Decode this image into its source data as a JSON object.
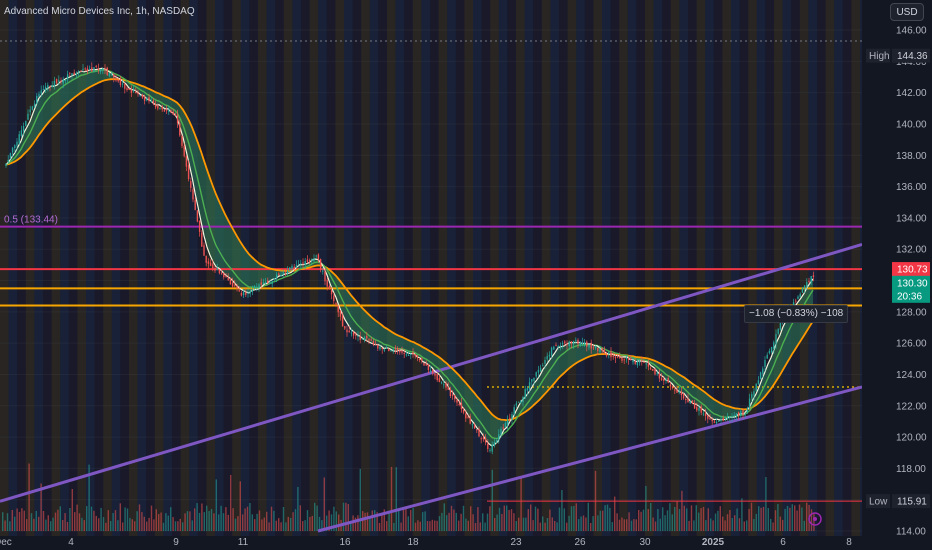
{
  "header": {
    "symbol_title": "Advanced Micro Devices Inc, 1h, NASDAQ",
    "currency": "USD"
  },
  "measure_label": "−1.08 (−0.83%) −108",
  "chart_data": {
    "type": "candlestick",
    "ylim": [
      113.3,
      147.0
    ],
    "x_ticks": [
      "Dec",
      "4",
      "9",
      "11",
      "16",
      "18",
      "23",
      "26",
      "30",
      "2025",
      "6",
      "8"
    ],
    "y_ticks": [
      "146.00",
      "144.00",
      "142.00",
      "140.00",
      "138.00",
      "136.00",
      "134.00",
      "132.00",
      "130.00",
      "128.00",
      "126.00",
      "124.00",
      "122.00",
      "120.00",
      "118.00",
      "116.00",
      "114.00"
    ],
    "price_path": [
      {
        "x": "Dec",
        "y": 137.4
      },
      {
        "x": "Dec 2",
        "y": 142.2
      },
      {
        "x": "Dec 3",
        "y": 142.8
      },
      {
        "x": "4",
        "y": 143.2
      },
      {
        "x": "Dec 5",
        "y": 143.6
      },
      {
        "x": "Dec 6",
        "y": 142.3
      },
      {
        "x": "9",
        "y": 140.5
      },
      {
        "x": "Dec 10",
        "y": 131.3
      },
      {
        "x": "11",
        "y": 129.1
      },
      {
        "x": "Dec 12",
        "y": 130.2
      },
      {
        "x": "Dec 13",
        "y": 131.6
      },
      {
        "x": "16",
        "y": 126.8
      },
      {
        "x": "Dec 17",
        "y": 125.6
      },
      {
        "x": "18",
        "y": 125.3
      },
      {
        "x": "Dec 19",
        "y": 123.6
      },
      {
        "x": "Dec 20",
        "y": 119.2
      },
      {
        "x": "23",
        "y": 122.0
      },
      {
        "x": "Dec 24",
        "y": 125.9
      },
      {
        "x": "26",
        "y": 126.1
      },
      {
        "x": "Dec 27",
        "y": 125.1
      },
      {
        "x": "30",
        "y": 124.7
      },
      {
        "x": "Dec 31",
        "y": 122.2
      },
      {
        "x": "2025",
        "y": 121.0
      },
      {
        "x": "Jan 3",
        "y": 121.6
      },
      {
        "x": "6",
        "y": 127.6
      },
      {
        "x": "Jan 7",
        "y": 130.3
      }
    ],
    "volume_note": "volume histogram at bottom",
    "horizontal_levels": [
      {
        "label": "0.5 (133.44)",
        "value": 133.44,
        "color": "#9c27b0"
      },
      {
        "value": 130.73,
        "color": "#f23645"
      },
      {
        "value": 129.5,
        "color": "#f7a600"
      },
      {
        "value": 128.4,
        "color": "#f7a600"
      },
      {
        "value": 123.2,
        "color": "#f7c600",
        "style": "dotted"
      },
      {
        "value": 115.91,
        "color": "#f23645"
      },
      {
        "value": 145.3,
        "color": "#787b86",
        "style": "dotted"
      }
    ],
    "channel": {
      "color": "#7e57c2",
      "upper": [
        {
          "x": "Dec",
          "y": 115.9
        },
        {
          "x": "end",
          "y": 132.3
        }
      ],
      "lower": [
        {
          "x": "16",
          "y": 113.4
        },
        {
          "x": "end",
          "y": 123.2
        }
      ]
    },
    "price_labels": {
      "high": {
        "label": "High",
        "value": "144.36",
        "y": 144.36
      },
      "low": {
        "label": "Low",
        "value": "115.91",
        "y": 115.91
      },
      "current_red": {
        "value": "130.73",
        "y": 130.73
      },
      "current_green": {
        "value": "130.30",
        "y": 130.3
      },
      "countdown": {
        "value": "20:36"
      }
    },
    "colors": {
      "up": "#26a69a",
      "down": "#ef5350",
      "ema_fast": "#f5f5dc",
      "ema_mid": "#4caf50",
      "ema_slow": "#ff9800"
    }
  }
}
